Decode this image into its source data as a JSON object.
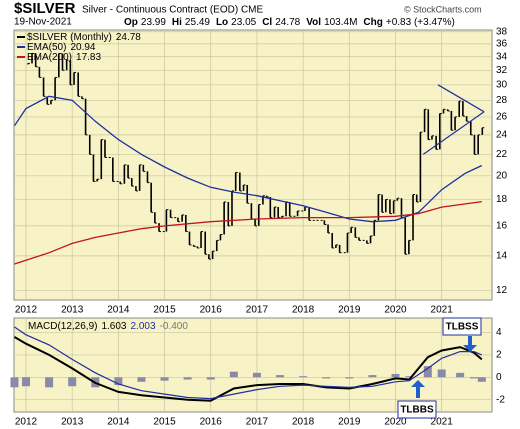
{
  "chart_data": [
    {
      "type": "price",
      "title": "$SILVER",
      "subtitle": "Silver - Continuous Contract (EOD) CME",
      "date": "19-Nov-2021",
      "source": "© StockCharts.com",
      "quote": [
        {
          "label": "Op",
          "value": "23.99"
        },
        {
          "label": "Hi",
          "value": "25.49"
        },
        {
          "label": "Lo",
          "value": "23.05"
        },
        {
          "label": "Cl",
          "value": "24.78"
        },
        {
          "label": "Vol",
          "value": "103.4M"
        },
        {
          "label": "Chg",
          "value": "+0.83 (+3.47%)"
        }
      ],
      "log_scale": true,
      "grid": true,
      "background": "#f7f3c6",
      "xlim": [
        2011.74,
        2022.09
      ],
      "xticks": [
        2012,
        2013,
        2014,
        2015,
        2016,
        2017,
        2018,
        2019,
        2020,
        2021
      ],
      "ylim": [
        11.5,
        38.3
      ],
      "yticks": [
        12,
        14,
        16,
        18,
        20,
        22,
        24,
        26,
        28,
        30,
        32,
        34,
        36,
        38
      ],
      "series": [
        {
          "name": "$SILVER (Monthly)",
          "last": "24.78",
          "color": "#000000",
          "style": "bars",
          "x": [
            2012.04,
            2012.13,
            2012.21,
            2012.29,
            2012.38,
            2012.46,
            2012.54,
            2012.63,
            2012.71,
            2012.79,
            2012.88,
            2012.96,
            2013.04,
            2013.13,
            2013.21,
            2013.29,
            2013.38,
            2013.46,
            2013.54,
            2013.63,
            2013.71,
            2013.79,
            2013.88,
            2013.96,
            2014.04,
            2014.13,
            2014.21,
            2014.29,
            2014.38,
            2014.46,
            2014.54,
            2014.63,
            2014.71,
            2014.79,
            2014.88,
            2014.96,
            2015.04,
            2015.13,
            2015.21,
            2015.29,
            2015.38,
            2015.46,
            2015.54,
            2015.63,
            2015.71,
            2015.79,
            2015.88,
            2015.96,
            2016.04,
            2016.13,
            2016.21,
            2016.29,
            2016.38,
            2016.46,
            2016.54,
            2016.63,
            2016.71,
            2016.79,
            2016.88,
            2016.96,
            2017.04,
            2017.13,
            2017.21,
            2017.29,
            2017.38,
            2017.46,
            2017.54,
            2017.63,
            2017.71,
            2017.79,
            2017.88,
            2017.96,
            2018.04,
            2018.13,
            2018.21,
            2018.29,
            2018.38,
            2018.46,
            2018.54,
            2018.63,
            2018.71,
            2018.79,
            2018.88,
            2018.96,
            2019.04,
            2019.13,
            2019.21,
            2019.29,
            2019.38,
            2019.46,
            2019.54,
            2019.63,
            2019.71,
            2019.79,
            2019.88,
            2019.96,
            2020.04,
            2020.13,
            2020.21,
            2020.29,
            2020.38,
            2020.46,
            2020.54,
            2020.63,
            2020.71,
            2020.79,
            2020.88,
            2020.96,
            2021.04,
            2021.13,
            2021.21,
            2021.29,
            2021.38,
            2021.46,
            2021.54,
            2021.63,
            2021.71,
            2021.79,
            2021.88
          ],
          "values": [
            33,
            34.5,
            32.5,
            31,
            28.5,
            27.5,
            28,
            31,
            34.5,
            32,
            33.5,
            30,
            31.7,
            28.5,
            28.2,
            24,
            22,
            19.5,
            19.7,
            23.5,
            21.7,
            21.7,
            19.5,
            19.5,
            19.3,
            21,
            19.8,
            19.1,
            18.7,
            21,
            20.4,
            19.4,
            17,
            16.2,
            15.6,
            15.6,
            17.2,
            16.6,
            16.6,
            16.3,
            16.8,
            15.6,
            14.7,
            14.6,
            14.5,
            15.6,
            14.1,
            13.8,
            14.3,
            15,
            15.4,
            17.8,
            16,
            18.7,
            20.3,
            18.7,
            19.2,
            17.7,
            16.5,
            16,
            17.6,
            18.3,
            18.2,
            16.6,
            17.4,
            16.6,
            16.7,
            17.8,
            16.7,
            16.7,
            17.1,
            17.1,
            17.4,
            16.4,
            16.4,
            16.4,
            16.4,
            16.1,
            15.5,
            14.5,
            14.7,
            14.2,
            14.2,
            15.5,
            15.9,
            15.2,
            15,
            15,
            14.8,
            15.3,
            16.4,
            18.4,
            17,
            18,
            16.9,
            17.9,
            18.1,
            16.6,
            14.1,
            15,
            18.4,
            17.8,
            24.3,
            26.9,
            23.5,
            23.9,
            22.5,
            26.4,
            26.9,
            26.7,
            24.5,
            26,
            27.9,
            26.1,
            25.5,
            24,
            22,
            24,
            24.78
          ]
        },
        {
          "name": "EMA(50)",
          "last": "20.94",
          "color": "#1f2fa0",
          "style": "line",
          "x": [
            2011.75,
            2012.0,
            2012.5,
            2013.0,
            2013.5,
            2014.0,
            2014.5,
            2015.0,
            2015.5,
            2016.0,
            2016.5,
            2017.0,
            2017.5,
            2018.0,
            2018.5,
            2019.0,
            2019.5,
            2020.0,
            2020.5,
            2021.0,
            2021.5,
            2021.87
          ],
          "values": [
            25,
            27,
            28.5,
            28,
            25.5,
            23.5,
            22,
            20.8,
            19.8,
            19,
            18.6,
            18.3,
            17.9,
            17.5,
            17,
            16.5,
            16.3,
            16.4,
            17,
            18.8,
            20.2,
            20.94
          ]
        },
        {
          "name": "EMA(200)",
          "last": "17.83",
          "color": "#c0141e",
          "style": "line",
          "x": [
            2011.75,
            2012.5,
            2013.0,
            2013.5,
            2014.0,
            2014.5,
            2015.0,
            2016.0,
            2017.0,
            2018.0,
            2019.0,
            2020.0,
            2020.5,
            2021.0,
            2021.87
          ],
          "values": [
            13.5,
            14.2,
            14.8,
            15.2,
            15.5,
            15.8,
            16.0,
            16.3,
            16.5,
            16.6,
            16.6,
            16.7,
            16.9,
            17.4,
            17.83
          ]
        }
      ],
      "trendlines": [
        {
          "color": "#1f2fa0",
          "x": [
            2020.6,
            2021.92
          ],
          "values": [
            22,
            26.6
          ]
        },
        {
          "color": "#1f2fa0",
          "x": [
            2020.92,
            2021.92
          ],
          "values": [
            30,
            26.6
          ]
        }
      ]
    },
    {
      "type": "macd",
      "name": "MACD(12,26,9)",
      "grid": true,
      "background": "#f7f3c6",
      "xlim": [
        2011.74,
        2022.09
      ],
      "xticks": [
        2012,
        2013,
        2014,
        2015,
        2016,
        2017,
        2018,
        2019,
        2020,
        2021
      ],
      "ylim": [
        -3.1,
        5.3
      ],
      "yticks": [
        -2,
        0,
        2,
        4
      ],
      "x": [
        2011.75,
        2012.0,
        2012.5,
        2013.0,
        2013.5,
        2014.0,
        2014.5,
        2015.0,
        2015.5,
        2016.0,
        2016.5,
        2017.0,
        2017.5,
        2018.0,
        2018.5,
        2019.0,
        2019.5,
        2020.0,
        2020.3,
        2020.7,
        2021.0,
        2021.4,
        2021.7,
        2021.87
      ],
      "series": [
        {
          "name": "MACD",
          "last": "1.603",
          "color": "#000000",
          "style": "line",
          "values": [
            3.6,
            3.0,
            2.0,
            0.8,
            -0.5,
            -1.3,
            -1.6,
            -1.8,
            -2.0,
            -2.1,
            -1.0,
            -0.7,
            -0.6,
            -0.6,
            -0.9,
            -1.0,
            -0.6,
            -0.1,
            -0.2,
            1.8,
            2.4,
            2.7,
            2.2,
            1.603
          ]
        },
        {
          "name": "Signal",
          "last": "2.003",
          "color": "#1f2fa0",
          "style": "line",
          "values": [
            4.5,
            3.8,
            2.9,
            1.6,
            0.4,
            -0.6,
            -1.2,
            -1.5,
            -1.8,
            -1.9,
            -1.5,
            -1.1,
            -0.8,
            -0.7,
            -0.8,
            -0.9,
            -0.8,
            -0.4,
            -0.3,
            0.8,
            1.7,
            2.3,
            2.3,
            2.003
          ]
        },
        {
          "name": "Histogram",
          "last": "-0.400",
          "color": "#8a8aa8",
          "style": "hist",
          "values": [
            -0.9,
            -0.8,
            -0.9,
            -0.8,
            -0.9,
            -0.7,
            -0.4,
            -0.3,
            -0.2,
            -0.2,
            0.5,
            0.4,
            0.2,
            0.1,
            -0.1,
            -0.1,
            0.2,
            0.3,
            0.1,
            1.0,
            0.7,
            0.4,
            -0.1,
            -0.4
          ]
        }
      ],
      "annotations": [
        {
          "text": "TLBSS"
        },
        {
          "text": "TLBBS"
        }
      ]
    }
  ]
}
